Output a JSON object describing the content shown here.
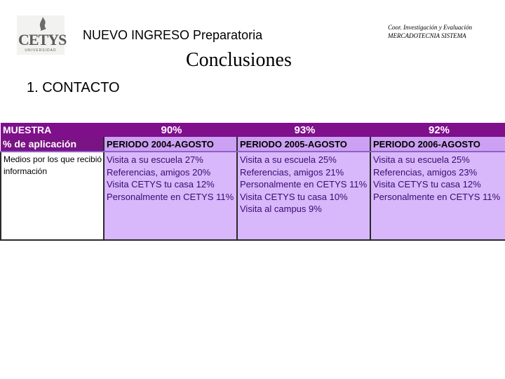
{
  "header": {
    "logo_text": "CETYS",
    "logo_subtext": "UNIVERSIDAD",
    "title": "NUEVO INGRESO Preparatoria",
    "coord_line1": "Coor. Investigación y Evaluación",
    "coord_line2": "MERCADOTECNIA SISTEMA"
  },
  "page_title": "Conclusiones",
  "section_heading": "1. CONTACTO",
  "table": {
    "row_muestra_label": "MUESTRA",
    "row_aplicacion_label": "% de aplicación",
    "row_medios_label": "Medios por los que recibió información",
    "columns": [
      {
        "percentage": "90%",
        "periodo": "PERIODO 2004-AGOSTO",
        "items": [
          "Visita a su escuela 27%",
          "Referencias, amigos 20%",
          "Visita CETYS tu casa 12%",
          "Personalmente en CETYS 11%"
        ]
      },
      {
        "percentage": "93%",
        "periodo": "PERIODO 2005-AGOSTO",
        "items": [
          "Visita a su escuela 25%",
          "Referencias, amigos 21%",
          "Personalmente en CETYS 11%",
          "Visita CETYS tu casa 10%",
          "Visita al campus 9%"
        ]
      },
      {
        "percentage": "92%",
        "periodo": "PERIODO 2006-AGOSTO",
        "items": [
          "Visita a su escuela 25%",
          "Referencias, amigos 23%",
          "Visita CETYS tu casa 12%",
          "Personalmente en CETYS 11%"
        ]
      }
    ]
  },
  "colors": {
    "header_purple": "#800f8c",
    "period_lilac": "#cca0f2",
    "body_lilac": "#d8b8fb"
  }
}
